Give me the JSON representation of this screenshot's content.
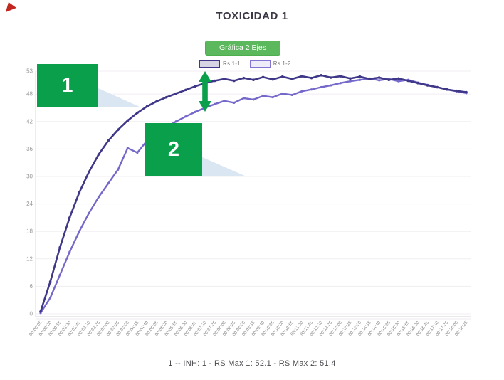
{
  "controls": {
    "button_label": "Gráfica 2 Ejes"
  },
  "annotations": {
    "box1_label": "1",
    "box2_label": "2",
    "arrow": "green double-headed vertical arrow between the two curves"
  },
  "colors": {
    "annotation_green": "#0a9f4b",
    "button_green": "#5cb85c",
    "series1_purple": "#3f3788",
    "series2_purple": "#7568cb",
    "callout_blue": "#dbe6f3",
    "gridline": "#f0edf1",
    "axis_line": "#d6d3d6",
    "tick_text": "#8c8c8c",
    "red_marker": "#c1271f"
  },
  "chart_data": {
    "type": "line",
    "title": "TOXICIDAD 1",
    "caption": "1 -- INH: 1 - RS Max 1: 52.1 - RS Max 2: 51.4",
    "legend_position": "top",
    "grid": "horizontal-only",
    "ylim": [
      0,
      53
    ],
    "y_ticks": [
      53,
      48,
      42,
      36,
      30,
      24,
      18,
      12,
      6,
      0
    ],
    "x": [
      "00:00:05",
      "00:00:30",
      "00:00:55",
      "00:01:20",
      "00:01:45",
      "00:02:10",
      "00:02:35",
      "00:03:00",
      "00:03:25",
      "00:03:50",
      "00:04:15",
      "00:04:40",
      "00:05:05",
      "00:05:30",
      "00:05:55",
      "00:06:20",
      "00:06:45",
      "00:07:10",
      "00:07:35",
      "00:08:00",
      "00:08:25",
      "00:08:50",
      "00:09:15",
      "00:09:40",
      "00:10:05",
      "00:10:30",
      "00:10:55",
      "00:11:20",
      "00:11:45",
      "00:12:10",
      "00:12:35",
      "00:13:00",
      "00:13:25",
      "00:13:50",
      "00:14:15",
      "00:14:40",
      "00:15:05",
      "00:15:30",
      "00:15:55",
      "00:16:20",
      "00:16:45",
      "00:17:10",
      "00:17:35",
      "00:18:00",
      "00:18:25"
    ],
    "series": [
      {
        "name": "Rs 1-1",
        "max_label": "RS Max 1: 52.1",
        "values": [
          0.5,
          7,
          14.5,
          21,
          26.5,
          31,
          34.8,
          37.8,
          40.2,
          42.2,
          43.9,
          45.3,
          46.4,
          47.3,
          48.1,
          48.9,
          49.7,
          50.4,
          50.9,
          51.3,
          50.9,
          51.5,
          51.1,
          51.7,
          51.2,
          51.8,
          51.3,
          51.9,
          51.5,
          52.1,
          51.6,
          51.9,
          51.4,
          51.8,
          51.3,
          51.6,
          51.1,
          51.4,
          50.9,
          50.4,
          49.9,
          49.5,
          49.0,
          48.7,
          48.4
        ]
      },
      {
        "name": "Rs 1-2",
        "max_label": "RS Max 2: 51.4",
        "values": [
          0.2,
          3.5,
          8.5,
          13.5,
          18.0,
          22.0,
          25.5,
          28.5,
          31.5,
          36.2,
          35.2,
          37.8,
          39.4,
          40.8,
          42.0,
          43.1,
          44.1,
          45.0,
          45.8,
          46.5,
          46.1,
          47.1,
          46.8,
          47.6,
          47.3,
          48.1,
          47.8,
          48.6,
          49.0,
          49.5,
          49.9,
          50.4,
          50.8,
          51.1,
          51.4,
          51.0,
          51.3,
          50.8,
          51.1,
          50.5,
          50.0,
          49.5,
          49.0,
          48.6,
          48.2
        ]
      }
    ]
  }
}
